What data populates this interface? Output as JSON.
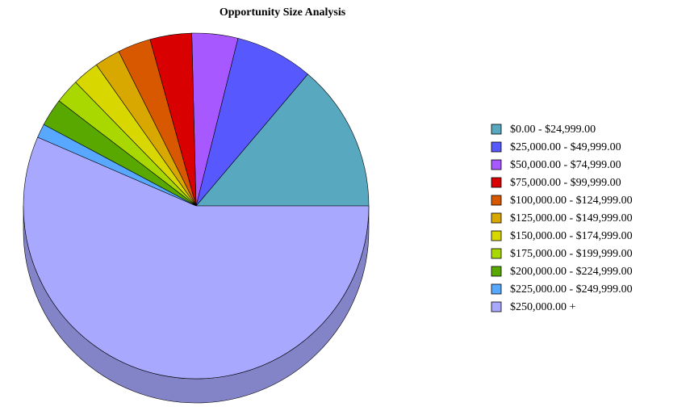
{
  "chart_data": {
    "type": "pie",
    "title": "Opportunity Size Analysis",
    "categories": [
      "$0.00 - $24,999.00",
      "$25,000.00 - $49,999.00",
      "$50,000.00 - $74,999.00",
      "$75,000.00 - $99,999.00",
      "$100,000.00 - $124,999.00",
      "$125,000.00 - $149,999.00",
      "$150,000.00 - $174,999.00",
      "$175,000.00 - $199,999.00",
      "$200,000.00 - $224,999.00",
      "$225,000.00 - $249,999.00",
      "$250,000.00 +"
    ],
    "values": [
      13.8,
      7.3,
      4.3,
      3.9,
      3.1,
      2.4,
      2.5,
      2.3,
      2.6,
      1.3,
      56.5
    ],
    "colors": [
      "#58a8c0",
      "#5858ff",
      "#a858ff",
      "#d80000",
      "#d85800",
      "#d8a800",
      "#d8d800",
      "#a8d800",
      "#58a800",
      "#58a8ff",
      "#a8a8ff"
    ],
    "legend": "right"
  }
}
